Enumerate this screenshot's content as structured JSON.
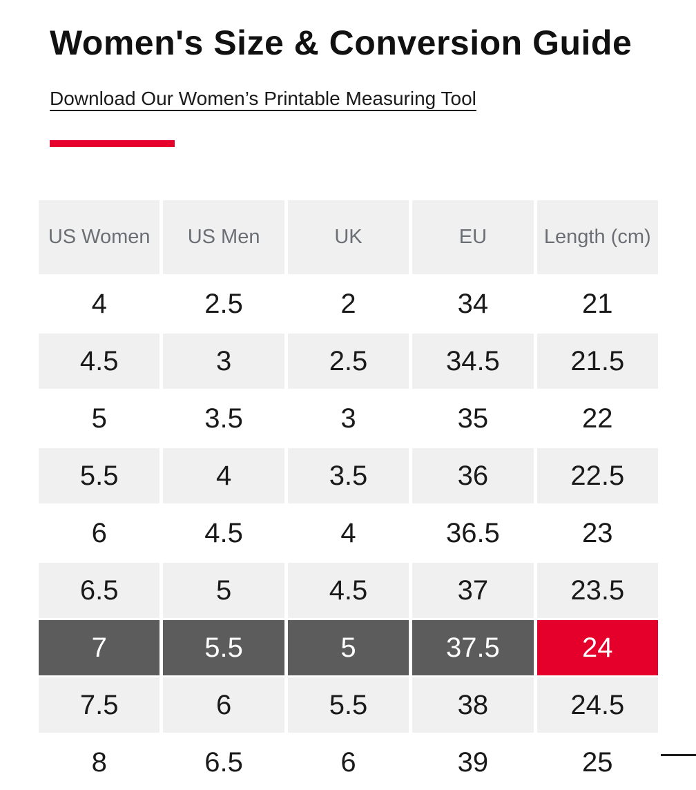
{
  "header": {
    "title": "Women's Size & Conversion Guide",
    "download_link_label": "Download Our Women’s Printable Measuring Tool"
  },
  "colors": {
    "accent_red": "#e4002b",
    "row_shade": "#f0f0f0",
    "header_text": "#6b6f74",
    "highlight_dark": "#5c5c5c",
    "data_text": "#1a1a1a"
  },
  "table": {
    "columns": [
      "US Women",
      "US Men",
      "UK",
      "EU",
      "Length (cm)"
    ],
    "rows": [
      {
        "variant": "white",
        "cells": [
          "4",
          "2.5",
          "2",
          "34",
          "21"
        ]
      },
      {
        "variant": "shaded",
        "cells": [
          "4.5",
          "3",
          "2.5",
          "34.5",
          "21.5"
        ]
      },
      {
        "variant": "white",
        "cells": [
          "5",
          "3.5",
          "3",
          "35",
          "22"
        ]
      },
      {
        "variant": "shaded",
        "cells": [
          "5.5",
          "4",
          "3.5",
          "36",
          "22.5"
        ]
      },
      {
        "variant": "white",
        "cells": [
          "6",
          "4.5",
          "4",
          "36.5",
          "23"
        ]
      },
      {
        "variant": "shaded",
        "cells": [
          "6.5",
          "5",
          "4.5",
          "37",
          "23.5"
        ]
      },
      {
        "variant": "highlight",
        "cells": [
          "7",
          "5.5",
          "5",
          "37.5",
          "24"
        ]
      },
      {
        "variant": "shaded",
        "cells": [
          "7.5",
          "6",
          "5.5",
          "38",
          "24.5"
        ]
      },
      {
        "variant": "white",
        "cells": [
          "8",
          "6.5",
          "6",
          "39",
          "25"
        ]
      }
    ],
    "highlighted_row_index": 6,
    "highlight_note": "selected size row; Length cell shown in red"
  }
}
